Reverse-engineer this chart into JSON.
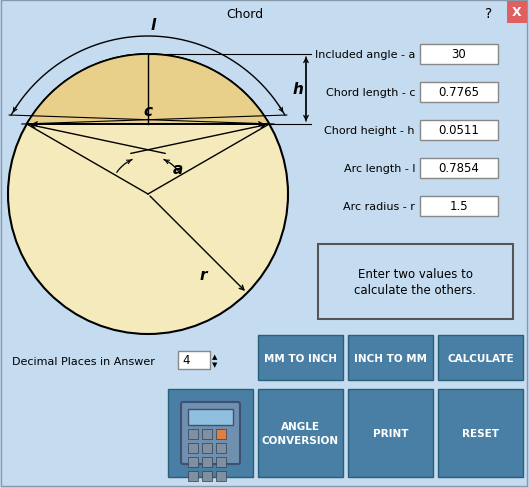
{
  "bg_color": "#C5DCF0",
  "title": "Chord",
  "circle_fill": "#F5EABC",
  "circle_edge": "#000000",
  "segment_fill": "#E8D08A",
  "fields": [
    {
      "label": "Included angle - a",
      "value": "30"
    },
    {
      "label": "Chord length - c",
      "value": "0.7765"
    },
    {
      "label": "Chord height - h",
      "value": "0.0511"
    },
    {
      "label": "Arc length - l",
      "value": "0.7854"
    },
    {
      "label": "Arc radius - r",
      "value": "1.5"
    }
  ],
  "info_text": "Enter two values to\ncalculate the others.",
  "buttons_row1": [
    "MM TO INCH",
    "INCH TO MM",
    "CALCULATE"
  ],
  "buttons_row2": [
    "",
    "ANGLE\nCONVERSION",
    "PRINT",
    "RESET"
  ],
  "button_color": "#4A7FA5",
  "button_text_color": "#FFFFFF",
  "decimal_label": "Decimal Places in Answer",
  "decimal_value": "4"
}
